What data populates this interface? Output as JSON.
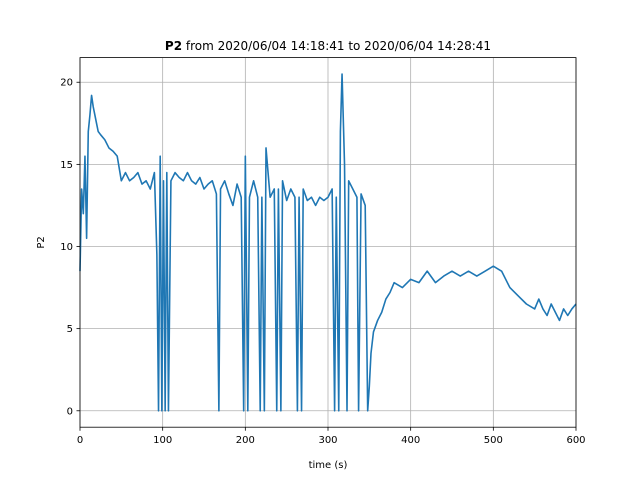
{
  "chart_data": {
    "type": "line",
    "title_bold": "P2",
    "title_rest": " from 2020/06/04 14:18:41 to 2020/06/04 14:28:41",
    "xlabel": "time (s)",
    "ylabel": "P2",
    "xlim": [
      0,
      600
    ],
    "ylim": [
      -1,
      21.5
    ],
    "xticks": [
      0,
      100,
      200,
      300,
      400,
      500,
      600
    ],
    "yticks": [
      0,
      5,
      10,
      15,
      20
    ],
    "grid": true,
    "line_color": "#1f77b4",
    "series": [
      {
        "x": [
          0,
          2,
          4,
          6,
          8,
          10,
          12,
          14,
          16,
          18,
          20,
          22,
          25,
          30,
          35,
          40,
          45,
          50,
          55,
          60,
          65,
          70,
          75,
          80,
          85,
          90,
          93,
          95,
          97,
          99,
          101,
          103,
          105,
          107,
          110,
          115,
          120,
          125,
          130,
          135,
          140,
          145,
          150,
          155,
          160,
          165,
          168,
          170,
          175,
          180,
          185,
          190,
          195,
          198,
          200,
          203,
          205,
          210,
          215,
          218,
          220,
          223,
          225,
          230,
          235,
          238,
          240,
          243,
          245,
          250,
          255,
          260,
          263,
          265,
          268,
          270,
          275,
          280,
          285,
          290,
          295,
          300,
          305,
          308,
          310,
          313,
          315,
          317,
          320,
          323,
          325,
          330,
          335,
          337,
          340,
          345,
          348,
          350,
          352,
          355,
          360,
          365,
          370,
          375,
          380,
          390,
          400,
          410,
          420,
          430,
          440,
          450,
          460,
          470,
          480,
          490,
          500,
          510,
          520,
          530,
          540,
          550,
          555,
          560,
          565,
          570,
          575,
          580,
          585,
          590,
          595,
          600
        ],
        "y": [
          8.5,
          13.5,
          12,
          15.5,
          10.5,
          17,
          18,
          19.2,
          18.5,
          18,
          17.5,
          17,
          16.8,
          16.5,
          16,
          15.8,
          15.5,
          14,
          14.5,
          14,
          14.2,
          14.5,
          13.8,
          14,
          13.5,
          14.5,
          9.5,
          0,
          15.5,
          0,
          14,
          0,
          14.5,
          0,
          14,
          14.5,
          14.2,
          14,
          14.5,
          14,
          13.8,
          14.2,
          13.5,
          13.8,
          14,
          13.2,
          0,
          13.5,
          14,
          13.2,
          12.5,
          13.8,
          13,
          0,
          15.5,
          0,
          13,
          14,
          13,
          0,
          13,
          0,
          16,
          13,
          13.5,
          0,
          13.5,
          0,
          14,
          12.8,
          13.5,
          13,
          0,
          13,
          0,
          13.5,
          12.8,
          13,
          12.5,
          13,
          12.8,
          13,
          13.5,
          0,
          13,
          0,
          17,
          20.5,
          15,
          0,
          14,
          13.5,
          13,
          0,
          13.2,
          12.5,
          0,
          1.5,
          3.5,
          4.8,
          5.5,
          6,
          6.8,
          7.2,
          7.8,
          7.5,
          8,
          7.8,
          8.5,
          7.8,
          8.2,
          8.5,
          8.2,
          8.5,
          8.2,
          8.5,
          8.8,
          8.5,
          7.5,
          7,
          6.5,
          6.2,
          6.8,
          6.2,
          5.8,
          6.5,
          6,
          5.5,
          6.2,
          5.8,
          6.2,
          6.5
        ]
      }
    ]
  }
}
